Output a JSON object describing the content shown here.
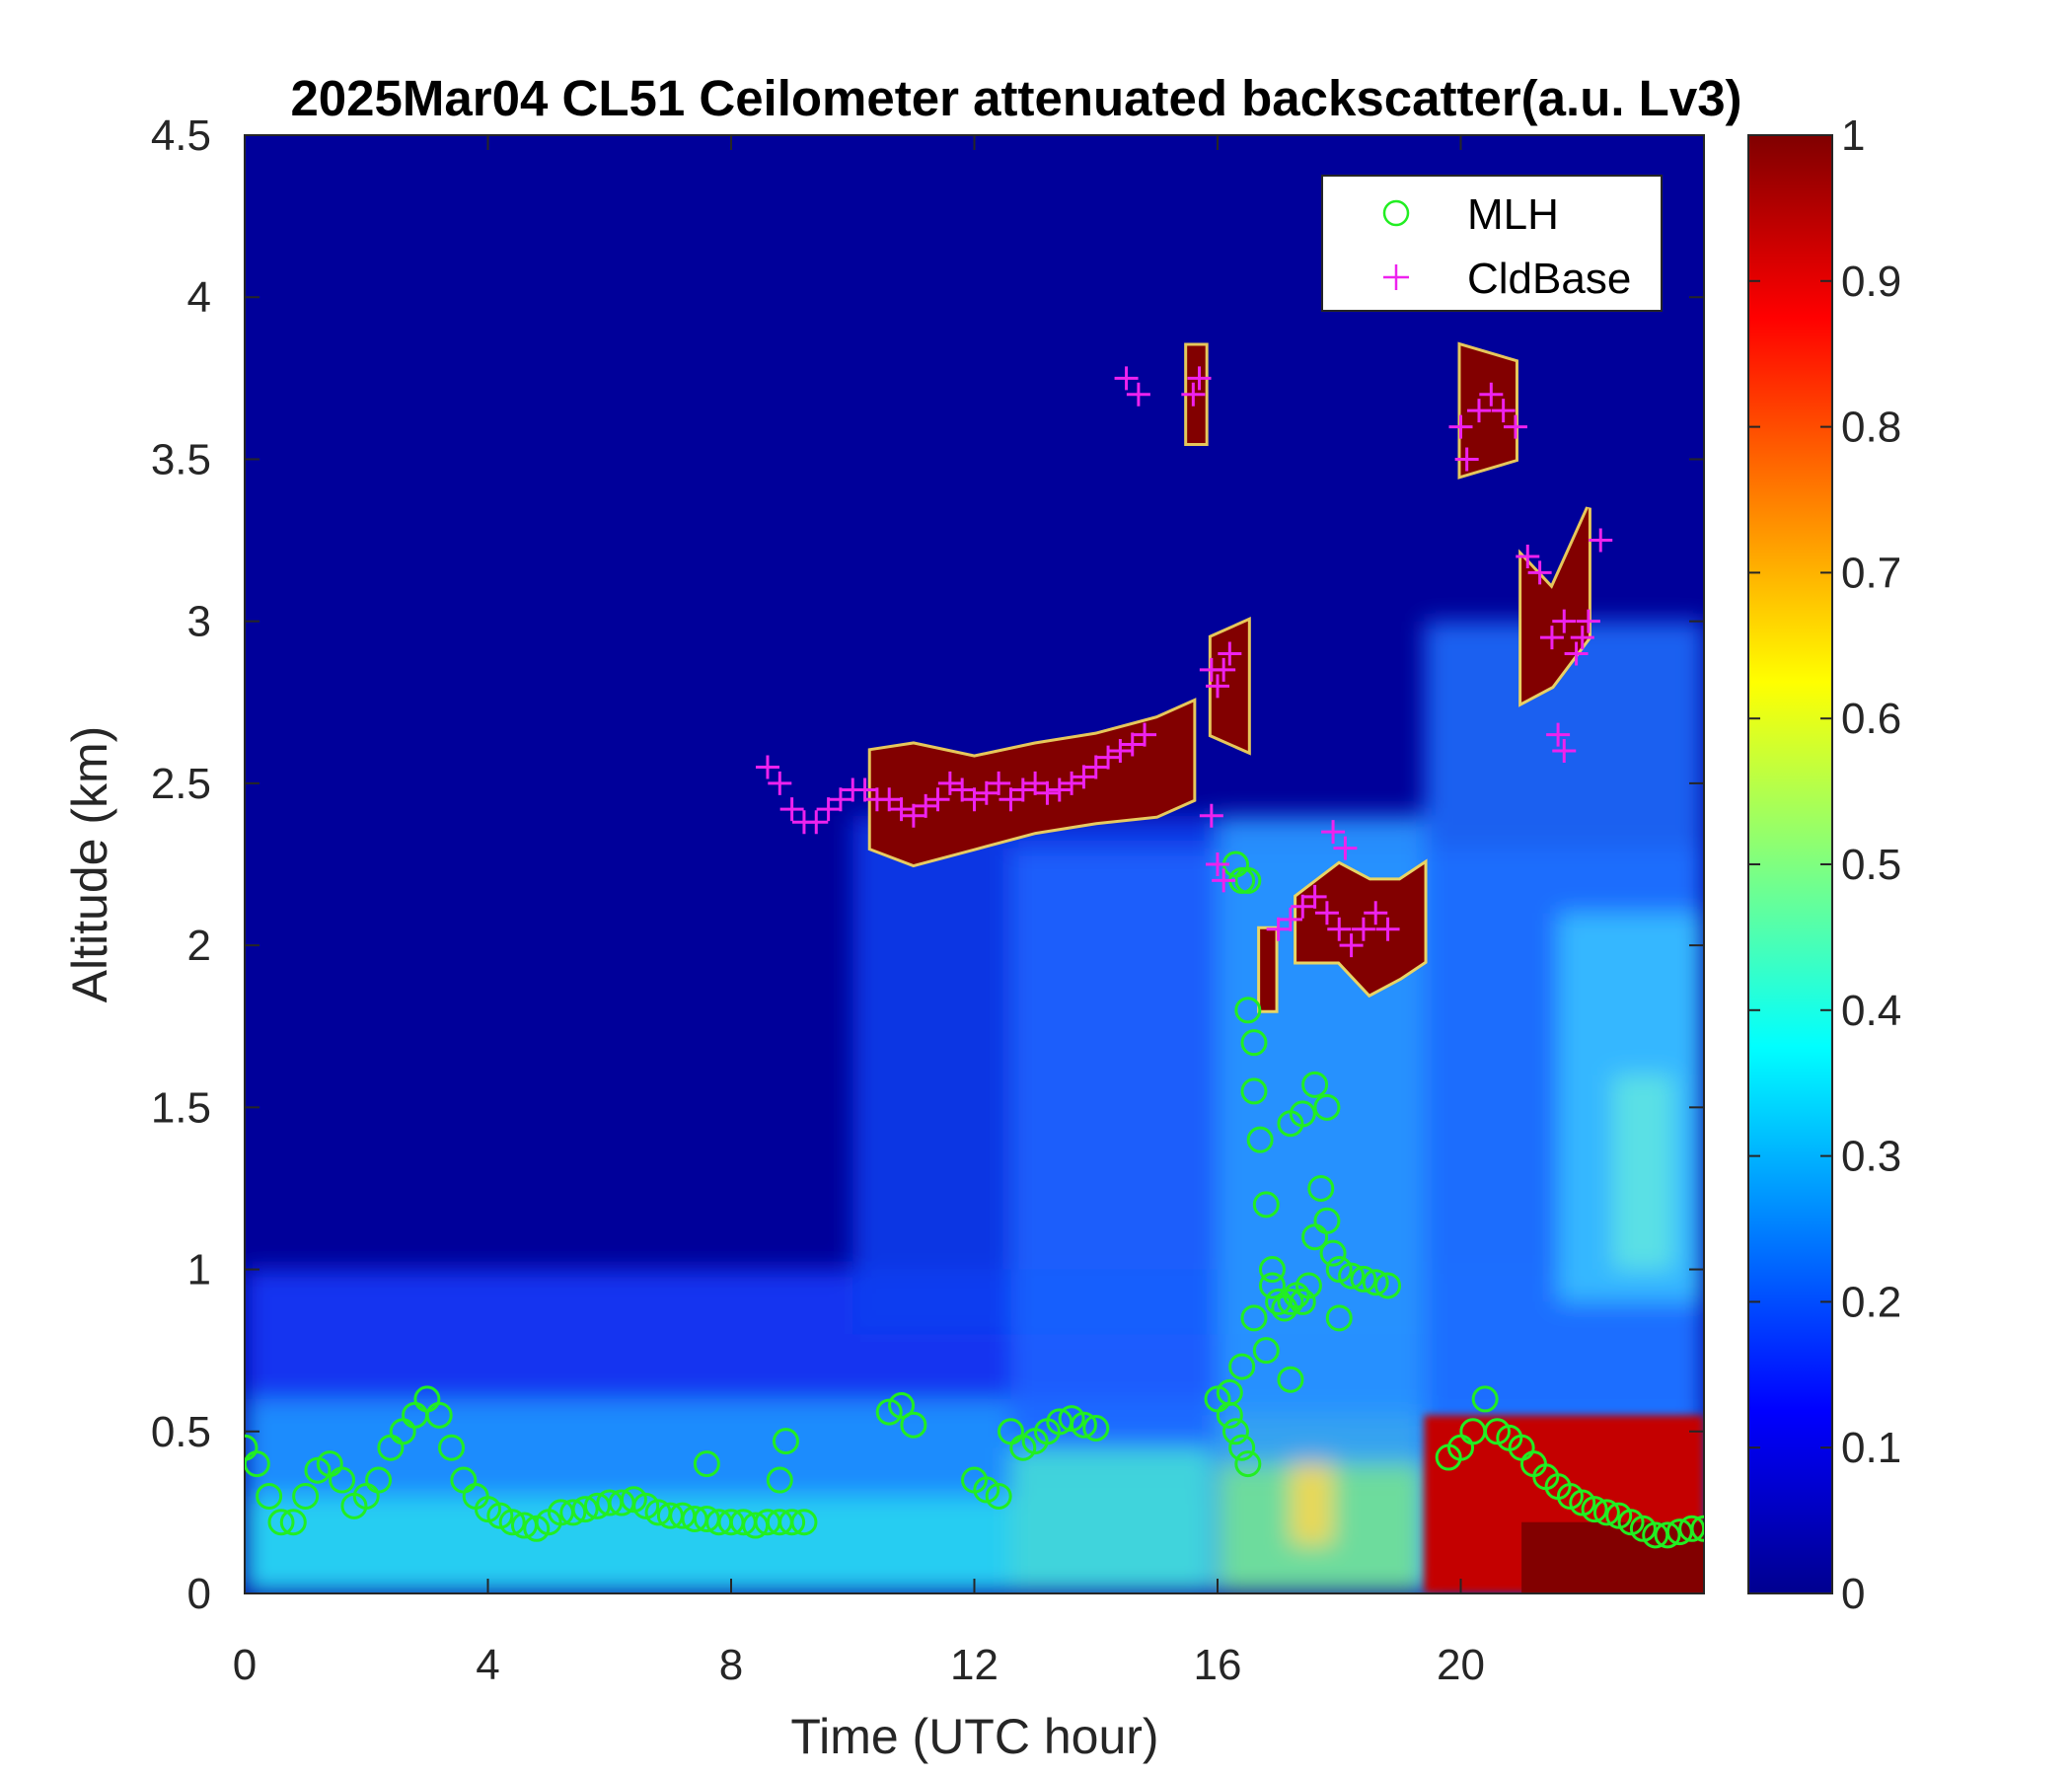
{
  "chart_data": {
    "type": "heatmap",
    "title": "2025Mar04 CL51 Ceilometer attenuated backscatter(a.u. Lv3)",
    "xlabel": "Time (UTC hour)",
    "ylabel": "Altitude (km)",
    "xlim": [
      0,
      24
    ],
    "ylim": [
      0,
      4.5
    ],
    "x_ticks": [
      0,
      4,
      8,
      12,
      16,
      20
    ],
    "x_tick_labels": [
      "0",
      "4",
      "8",
      "12",
      "16",
      "20"
    ],
    "y_ticks": [
      0,
      0.5,
      1,
      1.5,
      2,
      2.5,
      3,
      3.5,
      4,
      4.5
    ],
    "y_tick_labels": [
      "0",
      "0.5",
      "1",
      "1.5",
      "2",
      "2.5",
      "3",
      "3.5",
      "4",
      "4.5"
    ],
    "colorbar": {
      "colormap": "jet",
      "range": [
        0,
        1
      ],
      "ticks": [
        0,
        0.1,
        0.2,
        0.3,
        0.4,
        0.5,
        0.6,
        0.7,
        0.8,
        0.9,
        1
      ],
      "tick_labels": [
        "0",
        "0.1",
        "0.2",
        "0.3",
        "0.4",
        "0.5",
        "0.6",
        "0.7",
        "0.8",
        "0.9",
        "1"
      ]
    },
    "legend": {
      "position": "top-right",
      "entries": [
        {
          "label": "MLH",
          "marker": "circle",
          "color": "#22ee22"
        },
        {
          "label": "CldBase",
          "marker": "plus",
          "color": "#ee22ee"
        }
      ]
    },
    "cloud_layers": [
      {
        "t_start": 10.3,
        "t_end": 15.6,
        "base": [
          [
            10.3,
            2.3
          ],
          [
            11.0,
            2.25
          ],
          [
            12.0,
            2.3
          ],
          [
            13.0,
            2.35
          ],
          [
            14.0,
            2.38
          ],
          [
            15.0,
            2.4
          ],
          [
            15.6,
            2.45
          ]
        ],
        "top": [
          [
            10.3,
            2.6
          ],
          [
            11.0,
            2.62
          ],
          [
            12.0,
            2.58
          ],
          [
            13.0,
            2.62
          ],
          [
            14.0,
            2.65
          ],
          [
            15.0,
            2.7
          ],
          [
            15.6,
            2.75
          ]
        ]
      },
      {
        "t_start": 15.5,
        "t_end": 15.8,
        "base": [
          [
            15.5,
            3.55
          ],
          [
            15.8,
            3.55
          ]
        ],
        "top": [
          [
            15.5,
            3.85
          ],
          [
            15.8,
            3.85
          ]
        ]
      },
      {
        "t_start": 15.9,
        "t_end": 16.5,
        "base": [
          [
            15.9,
            2.65
          ],
          [
            16.5,
            2.6
          ]
        ],
        "top": [
          [
            15.9,
            2.95
          ],
          [
            16.5,
            3.0
          ]
        ]
      },
      {
        "t_start": 16.7,
        "t_end": 16.95,
        "base": [
          [
            16.7,
            1.8
          ],
          [
            16.95,
            1.8
          ]
        ],
        "top": [
          [
            16.7,
            2.05
          ],
          [
            16.95,
            2.05
          ]
        ]
      },
      {
        "t_start": 17.3,
        "t_end": 19.4,
        "base": [
          [
            17.3,
            1.95
          ],
          [
            18.0,
            1.95
          ],
          [
            18.5,
            1.85
          ],
          [
            19.0,
            1.9
          ],
          [
            19.4,
            1.95
          ]
        ],
        "top": [
          [
            17.3,
            2.15
          ],
          [
            18.0,
            2.25
          ],
          [
            18.5,
            2.2
          ],
          [
            19.0,
            2.2
          ],
          [
            19.4,
            2.25
          ]
        ]
      },
      {
        "t_start": 20.0,
        "t_end": 20.9,
        "base": [
          [
            20.0,
            3.45
          ],
          [
            20.9,
            3.5
          ]
        ],
        "top": [
          [
            20.0,
            3.85
          ],
          [
            20.9,
            3.8
          ]
        ]
      },
      {
        "t_start": 21.0,
        "t_end": 22.1,
        "base": [
          [
            21.0,
            2.75
          ],
          [
            21.5,
            2.8
          ],
          [
            22.1,
            2.95
          ]
        ],
        "top": [
          [
            21.0,
            3.2
          ],
          [
            21.5,
            3.1
          ],
          [
            22.1,
            3.35
          ]
        ]
      }
    ],
    "series": [
      {
        "name": "MLH",
        "marker": "circle",
        "color": "#22ee22",
        "x": [
          0.0,
          0.2,
          0.4,
          0.6,
          0.8,
          1.0,
          1.2,
          1.4,
          1.6,
          1.8,
          2.0,
          2.2,
          2.4,
          2.6,
          2.8,
          3.0,
          3.2,
          3.4,
          3.6,
          3.8,
          4.0,
          4.2,
          4.4,
          4.6,
          4.8,
          5.0,
          5.2,
          5.4,
          5.6,
          5.8,
          6.0,
          6.2,
          6.4,
          6.6,
          6.8,
          7.0,
          7.2,
          7.4,
          7.6,
          7.8,
          8.0,
          8.2,
          8.4,
          8.6,
          8.8,
          9.0,
          9.2,
          7.6,
          8.8,
          8.9,
          10.6,
          10.8,
          11.0,
          12.0,
          12.2,
          12.4,
          12.6,
          12.8,
          13.0,
          13.2,
          13.4,
          13.6,
          13.8,
          14.0,
          16.0,
          16.2,
          16.3,
          16.4,
          16.5,
          16.3,
          16.4,
          16.5,
          16.5,
          16.6,
          16.6,
          16.7,
          16.8,
          16.9,
          16.9,
          17.0,
          17.1,
          17.2,
          17.3,
          17.4,
          17.5,
          17.6,
          17.7,
          17.8,
          17.9,
          18.0,
          18.2,
          18.4,
          18.6,
          18.8,
          16.6,
          16.8,
          16.2,
          16.4,
          17.6,
          17.8,
          17.2,
          17.4,
          17.2,
          18.0,
          19.8,
          20.0,
          20.2,
          20.4,
          20.6,
          20.8,
          21.0,
          21.2,
          21.4,
          21.6,
          21.8,
          22.0,
          22.2,
          22.4,
          22.6,
          22.8,
          23.0,
          23.2,
          23.4,
          23.6,
          23.8,
          24.0
        ],
        "y": [
          0.45,
          0.4,
          0.3,
          0.22,
          0.22,
          0.3,
          0.38,
          0.4,
          0.35,
          0.27,
          0.3,
          0.35,
          0.45,
          0.5,
          0.55,
          0.6,
          0.55,
          0.45,
          0.35,
          0.3,
          0.26,
          0.24,
          0.22,
          0.21,
          0.2,
          0.22,
          0.25,
          0.25,
          0.26,
          0.27,
          0.28,
          0.28,
          0.29,
          0.27,
          0.25,
          0.24,
          0.24,
          0.23,
          0.23,
          0.22,
          0.22,
          0.22,
          0.21,
          0.22,
          0.22,
          0.22,
          0.22,
          0.4,
          0.35,
          0.47,
          0.56,
          0.58,
          0.52,
          0.35,
          0.32,
          0.3,
          0.5,
          0.45,
          0.47,
          0.5,
          0.53,
          0.54,
          0.52,
          0.51,
          0.6,
          0.55,
          0.5,
          0.45,
          0.4,
          2.25,
          2.2,
          2.2,
          1.8,
          1.7,
          1.55,
          1.4,
          1.2,
          1.0,
          0.95,
          0.9,
          0.88,
          0.9,
          0.92,
          0.9,
          0.95,
          1.1,
          1.25,
          1.15,
          1.05,
          1.0,
          0.98,
          0.97,
          0.96,
          0.95,
          0.85,
          0.75,
          0.62,
          0.7,
          1.57,
          1.5,
          1.45,
          1.48,
          0.66,
          0.85,
          0.42,
          0.45,
          0.5,
          0.6,
          0.5,
          0.48,
          0.45,
          0.4,
          0.36,
          0.33,
          0.3,
          0.28,
          0.26,
          0.25,
          0.24,
          0.22,
          0.2,
          0.18,
          0.18,
          0.19,
          0.2,
          0.2
        ]
      },
      {
        "name": "CldBase",
        "marker": "plus",
        "color": "#ee22ee",
        "x": [
          8.6,
          8.8,
          9.0,
          9.2,
          9.4,
          9.6,
          9.8,
          10.0,
          10.2,
          10.4,
          10.6,
          10.8,
          11.0,
          11.2,
          11.4,
          11.6,
          11.8,
          12.0,
          12.2,
          12.4,
          12.6,
          12.8,
          13.0,
          13.2,
          13.4,
          13.6,
          13.8,
          14.0,
          14.2,
          14.4,
          14.6,
          14.8,
          14.5,
          14.7,
          15.6,
          15.7,
          15.9,
          16.0,
          16.1,
          16.2,
          15.9,
          16.0,
          16.1,
          17.0,
          17.2,
          17.4,
          17.6,
          17.8,
          18.0,
          18.2,
          18.4,
          18.6,
          18.8,
          17.9,
          18.1,
          20.0,
          20.1,
          20.3,
          20.5,
          20.7,
          20.9,
          21.1,
          21.3,
          21.5,
          21.7,
          21.9,
          22.1,
          21.6,
          21.7,
          22.0,
          22.3
        ],
        "y": [
          2.55,
          2.5,
          2.42,
          2.38,
          2.38,
          2.42,
          2.45,
          2.48,
          2.48,
          2.45,
          2.45,
          2.42,
          2.4,
          2.43,
          2.45,
          2.5,
          2.48,
          2.45,
          2.47,
          2.5,
          2.45,
          2.48,
          2.5,
          2.47,
          2.48,
          2.5,
          2.52,
          2.55,
          2.58,
          2.6,
          2.62,
          2.65,
          3.75,
          3.7,
          3.7,
          3.75,
          2.85,
          2.8,
          2.85,
          2.9,
          2.4,
          2.25,
          2.2,
          2.05,
          2.08,
          2.12,
          2.15,
          2.1,
          2.05,
          2.0,
          2.05,
          2.1,
          2.05,
          2.35,
          2.3,
          3.6,
          3.5,
          3.65,
          3.7,
          3.65,
          3.6,
          3.2,
          3.15,
          2.95,
          3.0,
          2.9,
          3.0,
          2.65,
          2.6,
          2.95,
          3.25
        ]
      }
    ]
  }
}
